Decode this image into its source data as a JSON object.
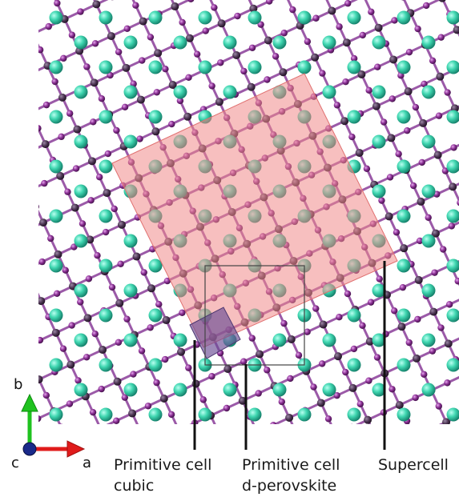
{
  "figure": {
    "labels": {
      "primitive_cubic": {
        "line1": "Primitive cell",
        "line2": "cubic"
      },
      "primitive_dperovskite": {
        "line1": "Primitive cell",
        "line2": "d-perovskite"
      },
      "supercell": "Supercell"
    },
    "axes": {
      "a": "a",
      "b": "b",
      "c": "c"
    },
    "colors": {
      "cation_atom": "#3fd6b0",
      "metal_atom": "#4a3350",
      "halide_atom": "#8a2f93",
      "bond": "#9b5aa8",
      "supercell_fill": "#f08a8a",
      "primitive_cubic_fill": "#7a5b9c",
      "axis_a": "#e01b1b",
      "axis_b": "#1fc21f",
      "axis_c": "#1a2a8a"
    }
  }
}
